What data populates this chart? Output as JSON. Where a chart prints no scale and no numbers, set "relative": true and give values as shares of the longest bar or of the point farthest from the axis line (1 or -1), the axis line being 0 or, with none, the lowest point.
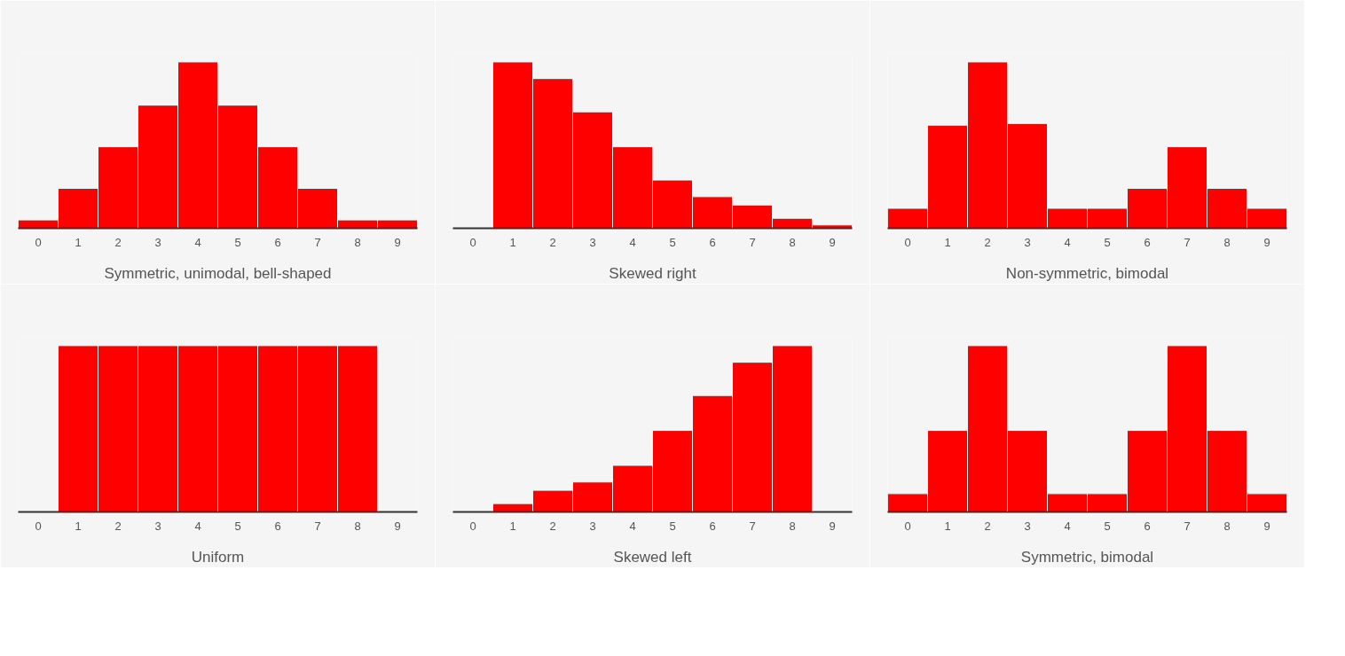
{
  "chart_data": [
    {
      "type": "bar",
      "categories": [
        "0",
        "1",
        "2",
        "3",
        "4",
        "5",
        "6",
        "7",
        "8",
        "9"
      ],
      "values": [
        0.05,
        0.24,
        0.49,
        0.74,
        1,
        0.74,
        0.49,
        0.24,
        0.05,
        0.05
      ],
      "color": "#ff0000",
      "relative": true,
      "xlabel": "Symmetric, unimodal, bell-shaped",
      "grid": false
    },
    {
      "type": "bar",
      "categories": [
        "0",
        "1",
        "2",
        "3",
        "4",
        "5",
        "6",
        "7",
        "8",
        "9"
      ],
      "values": [
        0,
        1,
        0.9,
        0.7,
        0.49,
        0.29,
        0.19,
        0.14,
        0.06,
        0.02
      ],
      "color": "#ff0000",
      "relative": true,
      "xlabel": "Skewed right",
      "grid": false
    },
    {
      "type": "bar",
      "categories": [
        "0",
        "1",
        "2",
        "3",
        "4",
        "5",
        "6",
        "7",
        "8",
        "9"
      ],
      "values": [
        0.12,
        0.62,
        1,
        0.63,
        0.12,
        0.12,
        0.24,
        0.49,
        0.24,
        0.12
      ],
      "color": "#ff0000",
      "relative": true,
      "xlabel": "Non-symmetric, bimodal",
      "grid": false
    },
    {
      "type": "bar",
      "categories": [
        "0",
        "1",
        "2",
        "3",
        "4",
        "5",
        "6",
        "7",
        "8",
        "9"
      ],
      "values": [
        0,
        1,
        1,
        1,
        1,
        1,
        1,
        1,
        1,
        0
      ],
      "color": "#ff0000",
      "relative": true,
      "xlabel": "Uniform",
      "grid": false
    },
    {
      "type": "bar",
      "categories": [
        "0",
        "1",
        "2",
        "3",
        "4",
        "5",
        "6",
        "7",
        "8",
        "9"
      ],
      "values": [
        0,
        0.05,
        0.13,
        0.18,
        0.28,
        0.49,
        0.7,
        0.9,
        1,
        0
      ],
      "color": "#ff0000",
      "relative": true,
      "xlabel": "Skewed left",
      "grid": false
    },
    {
      "type": "bar",
      "categories": [
        "0",
        "1",
        "2",
        "3",
        "4",
        "5",
        "6",
        "7",
        "8",
        "9"
      ],
      "values": [
        0.11,
        0.49,
        1,
        0.49,
        0.11,
        0.11,
        0.49,
        1,
        0.49,
        0.11
      ],
      "color": "#ff0000",
      "relative": true,
      "xlabel": "Symmetric, bimodal",
      "grid": false
    }
  ]
}
